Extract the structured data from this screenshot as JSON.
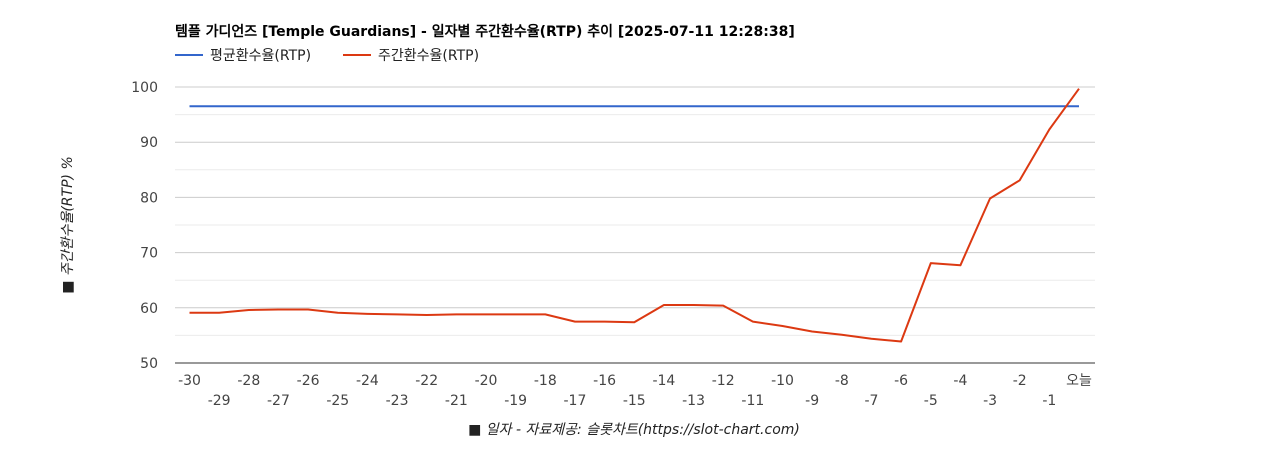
{
  "chart_data": {
    "type": "line",
    "title": "템플 가디언즈 [Temple Guardians] - 일자별 주간환수율(RTP) 추이 [2025-07-11 12:28:38]",
    "xlabel": "■ 일자 - 자료제공: 슬롯차트(https://slot-chart.com)",
    "ylabel": "■ 주간환수율(RTP) %",
    "ylim": [
      50,
      100
    ],
    "yticks": [
      "100",
      "90",
      "80",
      "70",
      "60",
      "50"
    ],
    "ytick_values": [
      100,
      90,
      80,
      70,
      60,
      50
    ],
    "categories": [
      "-30",
      "-29",
      "-28",
      "-27",
      "-26",
      "-25",
      "-24",
      "-23",
      "-22",
      "-21",
      "-20",
      "-19",
      "-18",
      "-17",
      "-16",
      "-15",
      "-14",
      "-13",
      "-12",
      "-11",
      "-10",
      "-9",
      "-8",
      "-7",
      "-6",
      "-5",
      "-4",
      "-3",
      "-2",
      "-1",
      "오늘"
    ],
    "legend_position": "top-left",
    "grid": true,
    "series": [
      {
        "name": "평균환수율(RTP)",
        "color": "#3366cc",
        "values": [
          96.5,
          96.5,
          96.5,
          96.5,
          96.5,
          96.5,
          96.5,
          96.5,
          96.5,
          96.5,
          96.5,
          96.5,
          96.5,
          96.5,
          96.5,
          96.5,
          96.5,
          96.5,
          96.5,
          96.5,
          96.5,
          96.5,
          96.5,
          96.5,
          96.5,
          96.5,
          96.5,
          96.5,
          96.5,
          96.5,
          96.5
        ]
      },
      {
        "name": "주간환수율(RTP)",
        "color": "#dc3912",
        "values": [
          59.1,
          59.1,
          59.6,
          59.7,
          59.7,
          59.1,
          58.9,
          58.8,
          58.7,
          58.8,
          58.8,
          58.8,
          58.8,
          57.5,
          57.5,
          57.4,
          60.5,
          60.5,
          60.4,
          57.5,
          56.7,
          55.7,
          55.1,
          54.4,
          53.9,
          68.1,
          67.7,
          79.8,
          83.1,
          92.3,
          99.7
        ]
      }
    ]
  }
}
